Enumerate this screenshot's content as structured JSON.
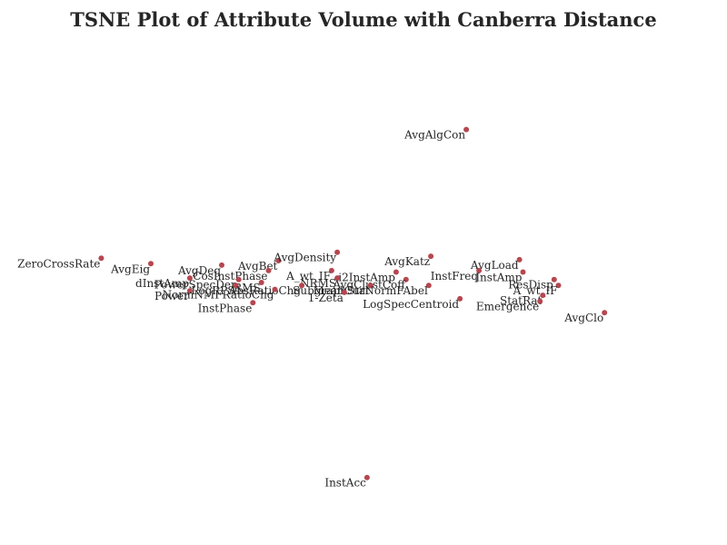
{
  "chart_data": {
    "type": "scatter",
    "title": "TSNE Plot of Attribute Volume with Canberra Distance",
    "xlabel": "",
    "ylabel": "",
    "grid": false,
    "axes_visible": false,
    "xlim": [
      0,
      100
    ],
    "ylim": [
      0,
      100
    ],
    "point_color": "#b5474f",
    "points": [
      {
        "label": "AvgAlgCon",
        "x": 64.5,
        "y": 82.1
      },
      {
        "label": "ZeroCrossRate",
        "x": 13.0,
        "y": 56.1
      },
      {
        "label": "AvgEig",
        "x": 20.0,
        "y": 55.0
      },
      {
        "label": "AvgDeg",
        "x": 30.0,
        "y": 54.7
      },
      {
        "label": "AvgBet",
        "x": 38.0,
        "y": 55.6
      },
      {
        "label": "AvgDensity",
        "x": 46.3,
        "y": 57.3
      },
      {
        "label": "AvgKatz",
        "x": 59.5,
        "y": 56.5
      },
      {
        "label": "AvgLoad",
        "x": 72.0,
        "y": 55.8
      },
      {
        "label": "InstFreq",
        "x": 66.3,
        "y": 53.6
      },
      {
        "label": "InstAmp",
        "x": 72.5,
        "y": 53.3
      },
      {
        "label": "A_wt_IF",
        "x": 45.5,
        "y": 53.6
      },
      {
        "label": "i2InstAmp",
        "x": 54.6,
        "y": 53.3
      },
      {
        "label": "CosInstPhase",
        "x": 36.6,
        "y": 53.6
      },
      {
        "label": "dInstAmp",
        "x": 25.5,
        "y": 52.1
      },
      {
        "label": "PowerSpecDen",
        "x": 32.4,
        "y": 51.8
      },
      {
        "label": "NRMS",
        "x": 46.3,
        "y": 52.1
      },
      {
        "label": "AvgClustCoff",
        "x": 56.0,
        "y": 51.8
      },
      {
        "label": "ResDisp",
        "x": 76.9,
        "y": 51.8
      },
      {
        "label": "SubgraphStat",
        "x": 51.0,
        "y": 50.6
      },
      {
        "label": "RMS",
        "x": 35.6,
        "y": 51.2
      },
      {
        "label": "LogRPS",
        "x": 32.0,
        "y": 50.6
      },
      {
        "label": "AbsRatioChg",
        "x": 41.3,
        "y": 50.6
      },
      {
        "label": "MeanCurNormFAbel",
        "x": 59.2,
        "y": 50.6
      },
      {
        "label": "A_wt_IF",
        "x": 77.5,
        "y": 50.6
      },
      {
        "label": "Power",
        "x": 25.5,
        "y": 49.5
      },
      {
        "label": "NormNMFRatioChg",
        "x": 37.5,
        "y": 49.8
      },
      {
        "label": "1-Zeta",
        "x": 47.3,
        "y": 49.2
      },
      {
        "label": "LogSpecCentroid",
        "x": 63.6,
        "y": 47.9
      },
      {
        "label": "StatRat",
        "x": 75.3,
        "y": 48.6
      },
      {
        "label": "Emergence",
        "x": 74.9,
        "y": 47.4
      },
      {
        "label": "InstPhase",
        "x": 34.4,
        "y": 47.1
      },
      {
        "label": "AvgClo",
        "x": 84.0,
        "y": 45.1
      },
      {
        "label": "InstAcc",
        "x": 50.5,
        "y": 11.8
      }
    ]
  }
}
